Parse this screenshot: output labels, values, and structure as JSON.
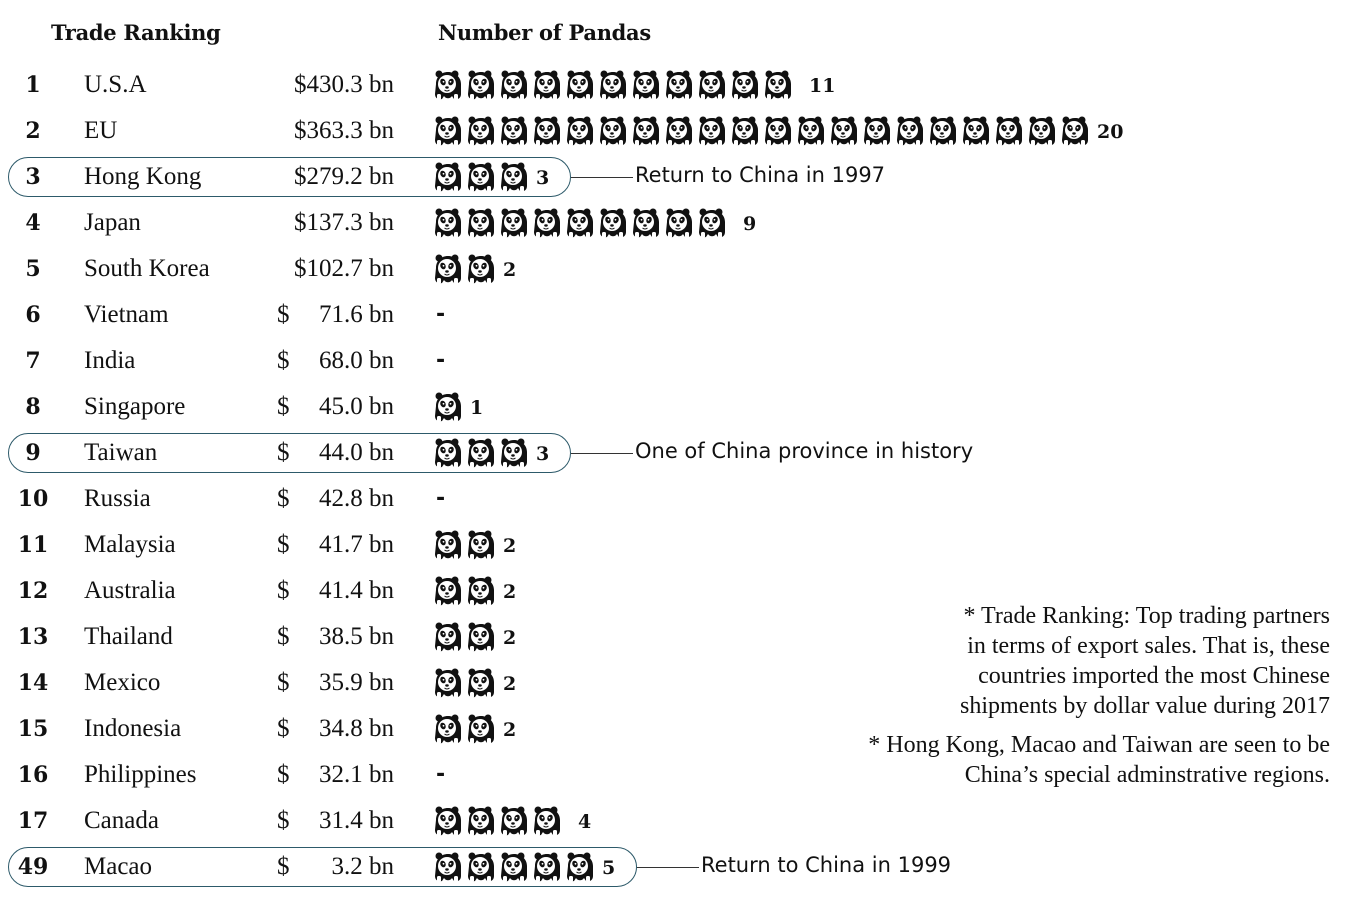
{
  "chart_data": {
    "type": "table",
    "headers": {
      "rank": "Trade Ranking",
      "pandas": "Number of Pandas"
    },
    "currency_symbol": "$",
    "rows": [
      {
        "rank": "1",
        "country": "U.S.A",
        "amount": "$430.3 bn",
        "pandas": 11,
        "count_label": "11"
      },
      {
        "rank": "2",
        "country": "EU",
        "amount": "$363.3 bn",
        "pandas": 20,
        "count_label": "20"
      },
      {
        "rank": "3",
        "country": "Hong Kong",
        "amount": "$279.2 bn",
        "pandas": 3,
        "count_label": "3",
        "highlight": true,
        "annotation": "Return to China in 1997"
      },
      {
        "rank": "4",
        "country": "Japan",
        "amount": "$137.3 bn",
        "pandas": 9,
        "count_label": "9"
      },
      {
        "rank": "5",
        "country": "South Korea",
        "amount": "$102.7 bn",
        "pandas": 2,
        "count_label": "2"
      },
      {
        "rank": "6",
        "country": "Vietnam",
        "amount": "71.6 bn",
        "pandas": null,
        "count_label": "-"
      },
      {
        "rank": "7",
        "country": "India",
        "amount": "68.0 bn",
        "pandas": null,
        "count_label": "-"
      },
      {
        "rank": "8",
        "country": "Singapore",
        "amount": "45.0 bn",
        "pandas": 1,
        "count_label": "1"
      },
      {
        "rank": "9",
        "country": "Taiwan",
        "amount": "44.0 bn",
        "pandas": 3,
        "count_label": "3",
        "highlight": true,
        "annotation": "One of China province in history"
      },
      {
        "rank": "10",
        "country": "Russia",
        "amount": "42.8 bn",
        "pandas": null,
        "count_label": "-"
      },
      {
        "rank": "11",
        "country": "Malaysia",
        "amount": "41.7 bn",
        "pandas": 2,
        "count_label": "2"
      },
      {
        "rank": "12",
        "country": "Australia",
        "amount": "41.4 bn",
        "pandas": 2,
        "count_label": "2"
      },
      {
        "rank": "13",
        "country": "Thailand",
        "amount": "38.5 bn",
        "pandas": 2,
        "count_label": "2"
      },
      {
        "rank": "14",
        "country": "Mexico",
        "amount": "35.9 bn",
        "pandas": 2,
        "count_label": "2"
      },
      {
        "rank": "15",
        "country": "Indonesia",
        "amount": "34.8 bn",
        "pandas": 2,
        "count_label": "2"
      },
      {
        "rank": "16",
        "country": "Philippines",
        "amount": "32.1 bn",
        "pandas": null,
        "count_label": "-"
      },
      {
        "rank": "17",
        "country": "Canada",
        "amount": "31.4 bn",
        "pandas": 4,
        "count_label": "4"
      },
      {
        "rank": "49",
        "country": "Macao",
        "amount": "3.2 bn",
        "pandas": 5,
        "count_label": "5",
        "highlight": true,
        "annotation": "Return to China in 1999"
      }
    ],
    "notes": [
      [
        "* Trade Ranking: Top trading partners",
        "in terms of export sales.  That is, these",
        "countries imported the most Chinese",
        "shipments by dollar value during 2017"
      ],
      [
        "* Hong Kong, Macao and Taiwan are seen to be",
        "China’s special adminstrative regions."
      ]
    ],
    "colors": {
      "highlight_border": "#2d5a6a",
      "text": "#111111",
      "panda": "#111111"
    },
    "icon": "panda-icon"
  }
}
